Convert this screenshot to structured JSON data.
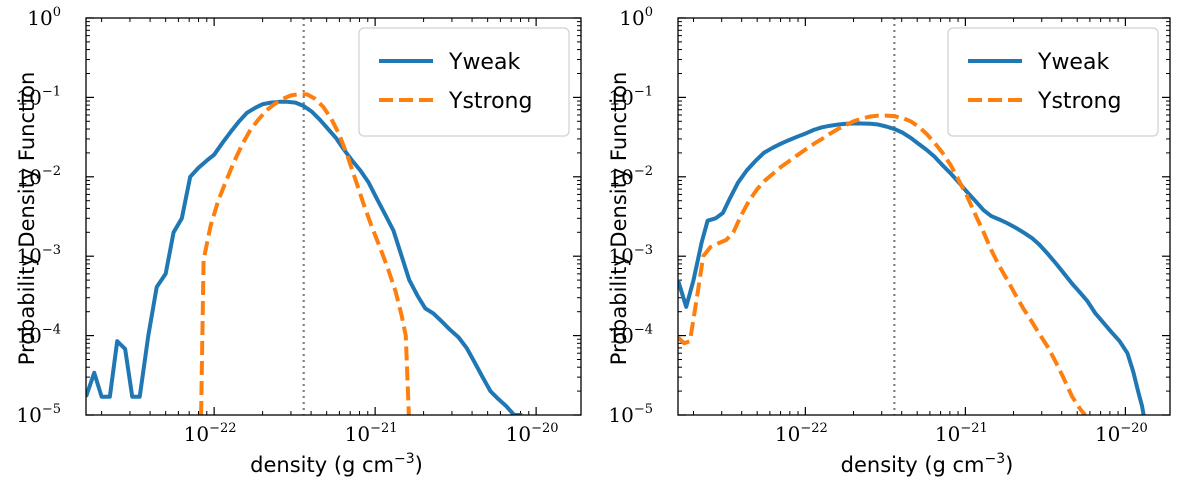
{
  "chart_data": [
    {
      "type": "line",
      "panel": "left",
      "xscale": "log",
      "yscale": "log",
      "xlim": [
        1.6e-23,
        1.9e-20
      ],
      "ylim": [
        1e-05,
        1
      ],
      "xlabel": {
        "text": "density (g cm",
        "sup": "−3",
        "close": ")"
      },
      "ylabel": "Probability Density Function",
      "x_ticks": [
        {
          "base": "10",
          "exp": "-22",
          "value": 1e-22
        },
        {
          "base": "10",
          "exp": "-21",
          "value": 1e-21
        },
        {
          "base": "10",
          "exp": "-20",
          "value": 1e-20
        }
      ],
      "y_ticks": [
        {
          "base": "10",
          "exp": "-5",
          "value": 1e-05
        },
        {
          "base": "10",
          "exp": "-4",
          "value": 0.0001
        },
        {
          "base": "10",
          "exp": "-3",
          "value": 0.001
        },
        {
          "base": "10",
          "exp": "-2",
          "value": 0.01
        },
        {
          "base": "10",
          "exp": "-1",
          "value": 0.1
        },
        {
          "base": "10",
          "exp": "0",
          "value": 1
        }
      ],
      "vline_x": 3.6e-22,
      "legend_loc": "upper right",
      "series": [
        {
          "name": "Yweak",
          "color": "#1f77b4",
          "style": "solid",
          "points": [
            [
              1.6e-23,
              1.7e-05
            ],
            [
              1.8e-23,
              3.4e-05
            ],
            [
              2e-23,
              1.7e-05
            ],
            [
              2.25e-23,
              1.7e-05
            ],
            [
              2.5e-23,
              8.5e-05
            ],
            [
              2.8e-23,
              6.8e-05
            ],
            [
              3.1e-23,
              1.7e-05
            ],
            [
              3.45e-23,
              1.7e-05
            ],
            [
              3.9e-23,
              0.0001
            ],
            [
              4.4e-23,
              0.00041
            ],
            [
              5e-23,
              0.0006
            ],
            [
              5.6e-23,
              0.002
            ],
            [
              6.3e-23,
              0.003
            ],
            [
              7.1e-23,
              0.01
            ],
            [
              8e-23,
              0.013
            ],
            [
              9e-23,
              0.016
            ],
            [
              1e-22,
              0.019
            ],
            [
              1.13e-22,
              0.027
            ],
            [
              1.27e-22,
              0.037
            ],
            [
              1.43e-22,
              0.05
            ],
            [
              1.6e-22,
              0.064
            ],
            [
              1.8e-22,
              0.074
            ],
            [
              2e-22,
              0.082
            ],
            [
              2.25e-22,
              0.086
            ],
            [
              2.55e-22,
              0.088
            ],
            [
              2.85e-22,
              0.088
            ],
            [
              3.2e-22,
              0.086
            ],
            [
              3.6e-22,
              0.078
            ],
            [
              4.05e-22,
              0.066
            ],
            [
              4.55e-22,
              0.052
            ],
            [
              5.1e-22,
              0.04
            ],
            [
              5.7e-22,
              0.031
            ],
            [
              6.4e-22,
              0.022
            ],
            [
              7.2e-22,
              0.016
            ],
            [
              8.1e-22,
              0.012
            ],
            [
              9.1e-22,
              0.0085
            ],
            [
              1.02e-21,
              0.0054
            ],
            [
              1.15e-21,
              0.0034
            ],
            [
              1.3e-21,
              0.0021
            ],
            [
              1.45e-21,
              0.00105
            ],
            [
              1.63e-21,
              0.0005
            ],
            [
              1.83e-21,
              0.00032
            ],
            [
              2.05e-21,
              0.00022
            ],
            [
              2.3e-21,
              0.00019
            ],
            [
              2.6e-21,
              0.00015
            ],
            [
              2.9e-21,
              0.00012
            ],
            [
              3.3e-21,
              9.5e-05
            ],
            [
              3.7e-21,
              7e-05
            ],
            [
              4.15e-21,
              4.6e-05
            ],
            [
              4.65e-21,
              3e-05
            ],
            [
              5.2e-21,
              2e-05
            ],
            [
              5.8e-21,
              1.6e-05
            ],
            [
              6.5e-21,
              1.3e-05
            ],
            [
              7.3e-21,
              1e-05
            ],
            [
              8.2e-21,
              1e-05
            ]
          ]
        },
        {
          "name": "Ystrong",
          "color": "#ff7f0e",
          "style": "dashed",
          "points": [
            [
              8.3e-23,
              1e-05
            ],
            [
              8.6e-23,
              0.0009
            ],
            [
              9.5e-23,
              0.0024
            ],
            [
              1.06e-22,
              0.005
            ],
            [
              1.19e-22,
              0.009
            ],
            [
              1.34e-22,
              0.016
            ],
            [
              1.5e-22,
              0.026
            ],
            [
              1.68e-22,
              0.039
            ],
            [
              1.89e-22,
              0.053
            ],
            [
              2.12e-22,
              0.069
            ],
            [
              2.38e-22,
              0.083
            ],
            [
              2.67e-22,
              0.096
            ],
            [
              3e-22,
              0.106
            ],
            [
              3.37e-22,
              0.11
            ],
            [
              3.78e-22,
              0.109
            ],
            [
              4.24e-22,
              0.096
            ],
            [
              4.76e-22,
              0.076
            ],
            [
              5.34e-22,
              0.054
            ],
            [
              5.99e-22,
              0.034
            ],
            [
              6.72e-22,
              0.0185
            ],
            [
              7.54e-22,
              0.0093
            ],
            [
              8.46e-22,
              0.0046
            ],
            [
              9.5e-22,
              0.0024
            ],
            [
              1.07e-21,
              0.0013
            ],
            [
              1.2e-21,
              0.0007
            ],
            [
              1.34e-21,
              0.00036
            ],
            [
              1.46e-21,
              0.00018
            ],
            [
              1.55e-21,
              0.0001
            ],
            [
              1.62e-21,
              1e-05
            ]
          ]
        }
      ]
    },
    {
      "type": "line",
      "panel": "right",
      "xscale": "log",
      "yscale": "log",
      "xlim": [
        1.6e-23,
        1.9e-20
      ],
      "ylim": [
        1e-05,
        1
      ],
      "xlabel": {
        "text": "density (g cm",
        "sup": "−3",
        "close": ")"
      },
      "ylabel": "Probability Density Function",
      "x_ticks": [
        {
          "base": "10",
          "exp": "-22",
          "value": 1e-22
        },
        {
          "base": "10",
          "exp": "-21",
          "value": 1e-21
        },
        {
          "base": "10",
          "exp": "-20",
          "value": 1e-20
        }
      ],
      "y_ticks": [
        {
          "base": "10",
          "exp": "-5",
          "value": 1e-05
        },
        {
          "base": "10",
          "exp": "-4",
          "value": 0.0001
        },
        {
          "base": "10",
          "exp": "-3",
          "value": 0.001
        },
        {
          "base": "10",
          "exp": "-2",
          "value": 0.01
        },
        {
          "base": "10",
          "exp": "-1",
          "value": 0.1
        },
        {
          "base": "10",
          "exp": "0",
          "value": 1
        }
      ],
      "vline_x": 3.6e-22,
      "legend_loc": "upper right",
      "series": [
        {
          "name": "Yweak",
          "color": "#1f77b4",
          "style": "solid",
          "points": [
            [
              1.6e-23,
              0.0005
            ],
            [
              1.8e-23,
              0.00023
            ],
            [
              2e-23,
              0.0005
            ],
            [
              2.25e-23,
              0.0015
            ],
            [
              2.45e-23,
              0.0028
            ],
            [
              2.75e-23,
              0.003
            ],
            [
              3.05e-23,
              0.0035
            ],
            [
              3.4e-23,
              0.0055
            ],
            [
              3.8e-23,
              0.0085
            ],
            [
              4.3e-23,
              0.012
            ],
            [
              4.9e-23,
              0.016
            ],
            [
              5.5e-23,
              0.02
            ],
            [
              6.2e-23,
              0.023
            ],
            [
              7e-23,
              0.026
            ],
            [
              7.9e-23,
              0.029
            ],
            [
              8.9e-23,
              0.032
            ],
            [
              1e-22,
              0.035
            ],
            [
              1.13e-22,
              0.039
            ],
            [
              1.27e-22,
              0.042
            ],
            [
              1.43e-22,
              0.044
            ],
            [
              1.6e-22,
              0.0455
            ],
            [
              1.8e-22,
              0.0465
            ],
            [
              2e-22,
              0.047
            ],
            [
              2.25e-22,
              0.047
            ],
            [
              2.55e-22,
              0.0465
            ],
            [
              2.85e-22,
              0.0455
            ],
            [
              3.2e-22,
              0.043
            ],
            [
              3.6e-22,
              0.04
            ],
            [
              4.05e-22,
              0.036
            ],
            [
              4.55e-22,
              0.031
            ],
            [
              5.1e-22,
              0.026
            ],
            [
              5.7e-22,
              0.022
            ],
            [
              6.4e-22,
              0.018
            ],
            [
              7.2e-22,
              0.014
            ],
            [
              8.1e-22,
              0.011
            ],
            [
              9.1e-22,
              0.0085
            ],
            [
              1.02e-21,
              0.0065
            ],
            [
              1.15e-21,
              0.005
            ],
            [
              1.3e-21,
              0.0038
            ],
            [
              1.45e-21,
              0.0032
            ],
            [
              1.63e-21,
              0.0029
            ],
            [
              1.83e-21,
              0.0026
            ],
            [
              2.05e-21,
              0.0023
            ],
            [
              2.3e-21,
              0.002
            ],
            [
              2.6e-21,
              0.0017
            ],
            [
              2.9e-21,
              0.0014
            ],
            [
              3.3e-21,
              0.00105
            ],
            [
              3.7e-21,
              0.0008
            ],
            [
              4.15e-21,
              0.0006
            ],
            [
              4.65e-21,
              0.00045
            ],
            [
              5.2e-21,
              0.00035
            ],
            [
              5.8e-21,
              0.00027
            ],
            [
              6.5e-21,
              0.00019
            ],
            [
              7.3e-21,
              0.000145
            ],
            [
              8.2e-21,
              0.00011
            ],
            [
              9.2e-21,
              8.5e-05
            ],
            [
              1.03e-20,
              6e-05
            ],
            [
              1.12e-20,
              3.5e-05
            ],
            [
              1.2e-20,
              2e-05
            ],
            [
              1.27e-20,
              1.3e-05
            ],
            [
              1.3e-20,
              1e-05
            ]
          ]
        },
        {
          "name": "Ystrong",
          "color": "#ff7f0e",
          "style": "dashed",
          "points": [
            [
              1.6e-23,
              9.5e-05
            ],
            [
              1.75e-23,
              8e-05
            ],
            [
              1.9e-23,
              8.5e-05
            ],
            [
              2.1e-23,
              0.0003
            ],
            [
              2.3e-23,
              0.001
            ],
            [
              2.55e-23,
              0.0013
            ],
            [
              2.85e-23,
              0.00145
            ],
            [
              3.2e-23,
              0.0016
            ],
            [
              3.55e-23,
              0.002
            ],
            [
              3.95e-23,
              0.0032
            ],
            [
              4.45e-23,
              0.005
            ],
            [
              5e-23,
              0.007
            ],
            [
              5.6e-23,
              0.009
            ],
            [
              6.3e-23,
              0.011
            ],
            [
              7.1e-23,
              0.0135
            ],
            [
              8e-23,
              0.016
            ],
            [
              9e-23,
              0.019
            ],
            [
              1e-22,
              0.022
            ],
            [
              1.13e-22,
              0.026
            ],
            [
              1.27e-22,
              0.03
            ],
            [
              1.43e-22,
              0.035
            ],
            [
              1.6e-22,
              0.04
            ],
            [
              1.8e-22,
              0.045
            ],
            [
              2e-22,
              0.05
            ],
            [
              2.25e-22,
              0.054
            ],
            [
              2.55e-22,
              0.0575
            ],
            [
              2.85e-22,
              0.059
            ],
            [
              3.2e-22,
              0.059
            ],
            [
              3.6e-22,
              0.058
            ],
            [
              4.05e-22,
              0.055
            ],
            [
              4.55e-22,
              0.05
            ],
            [
              5.1e-22,
              0.043
            ],
            [
              5.7e-22,
              0.035
            ],
            [
              6.4e-22,
              0.027
            ],
            [
              7.2e-22,
              0.02
            ],
            [
              8.1e-22,
              0.014
            ],
            [
              9.1e-22,
              0.009
            ],
            [
              1.02e-21,
              0.0058
            ],
            [
              1.15e-21,
              0.0034
            ],
            [
              1.3e-21,
              0.002
            ],
            [
              1.45e-21,
              0.0012
            ],
            [
              1.63e-21,
              0.00075
            ],
            [
              1.83e-21,
              0.0005
            ],
            [
              2.05e-21,
              0.00033
            ],
            [
              2.3e-21,
              0.00022
            ],
            [
              2.6e-21,
              0.00015
            ],
            [
              2.9e-21,
              0.000105
            ],
            [
              3.3e-21,
              7e-05
            ],
            [
              3.7e-21,
              4.5e-05
            ],
            [
              4.15e-21,
              2.8e-05
            ],
            [
              4.65e-21,
              1.7e-05
            ],
            [
              5.2e-21,
              1.2e-05
            ],
            [
              5.6e-21,
              1e-05
            ]
          ]
        }
      ]
    }
  ]
}
